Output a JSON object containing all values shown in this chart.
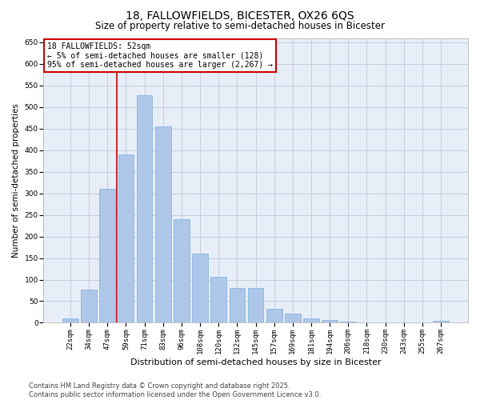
{
  "title": "18, FALLOWFIELDS, BICESTER, OX26 6QS",
  "subtitle": "Size of property relative to semi-detached houses in Bicester",
  "xlabel": "Distribution of semi-detached houses by size in Bicester",
  "ylabel": "Number of semi-detached properties",
  "categories": [
    "22sqm",
    "34sqm",
    "47sqm",
    "59sqm",
    "71sqm",
    "83sqm",
    "96sqm",
    "108sqm",
    "120sqm",
    "132sqm",
    "145sqm",
    "157sqm",
    "169sqm",
    "181sqm",
    "194sqm",
    "206sqm",
    "218sqm",
    "230sqm",
    "243sqm",
    "255sqm",
    "267sqm"
  ],
  "values": [
    10,
    76,
    311,
    390,
    527,
    455,
    240,
    160,
    106,
    80,
    80,
    32,
    22,
    10,
    7,
    3,
    0,
    0,
    0,
    0,
    4
  ],
  "bar_color": "#aec6e8",
  "bar_edge_color": "#7aafe0",
  "vline_color": "#cc0000",
  "annotation_text": "18 FALLOWFIELDS: 52sqm\n← 5% of semi-detached houses are smaller (128)\n95% of semi-detached houses are larger (2,267) →",
  "annotation_box_color": "#cc0000",
  "ylim": [
    0,
    660
  ],
  "yticks": [
    0,
    50,
    100,
    150,
    200,
    250,
    300,
    350,
    400,
    450,
    500,
    550,
    600,
    650
  ],
  "grid_color": "#c0c8d8",
  "background_color": "#e8eef8",
  "footer_text": "Contains HM Land Registry data © Crown copyright and database right 2025.\nContains public sector information licensed under the Open Government Licence v3.0.",
  "title_fontsize": 10,
  "subtitle_fontsize": 8.5,
  "xlabel_fontsize": 8,
  "ylabel_fontsize": 7.5,
  "tick_fontsize": 6.5,
  "annotation_fontsize": 7,
  "footer_fontsize": 6
}
